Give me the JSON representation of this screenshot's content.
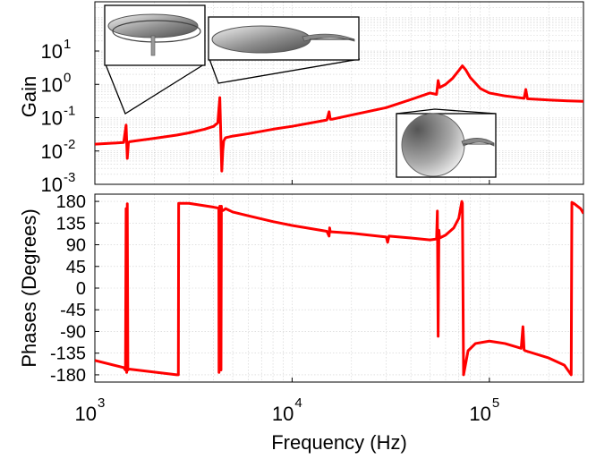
{
  "chart_data": [
    {
      "type": "line",
      "name": "gain-panel",
      "ylabel": "Gain",
      "xscale": "log",
      "yscale": "log",
      "xlim": [
        1000,
        300000
      ],
      "ylim": [
        0.001,
        300
      ],
      "ytick_values": [
        0.001,
        0.01,
        0.1,
        1,
        10
      ],
      "ytick_exps": [
        "-3",
        "-2",
        "-1",
        "0",
        "1"
      ],
      "ytick_base": "10",
      "grid": true,
      "color": "#ff0000",
      "series": [
        {
          "x": [
            1000,
            1200,
            1400,
            1440,
            1460,
            1480,
            1500,
            1600,
            2000,
            2600,
            3000,
            3600,
            4000,
            4200,
            4300,
            4350,
            4400,
            4450,
            4500,
            4600,
            5000,
            6000,
            8000,
            10000,
            15000,
            15400,
            15600,
            16000,
            20000,
            30000,
            40000,
            50000,
            54000,
            55000,
            56000,
            60000,
            65000,
            70000,
            73000,
            76000,
            80000,
            90000,
            100000,
            120000,
            150000,
            153000,
            156000,
            200000,
            250000,
            300000
          ],
          "y": [
            0.016,
            0.017,
            0.018,
            0.06,
            0.006,
            0.018,
            0.019,
            0.02,
            0.024,
            0.03,
            0.035,
            0.045,
            0.055,
            0.07,
            0.4,
            0.03,
            0.0025,
            0.01,
            0.02,
            0.025,
            0.028,
            0.033,
            0.045,
            0.055,
            0.085,
            0.15,
            0.09,
            0.09,
            0.12,
            0.2,
            0.35,
            0.55,
            0.5,
            1.3,
            0.8,
            1.0,
            1.5,
            2.6,
            3.6,
            2.7,
            1.6,
            0.75,
            0.55,
            0.45,
            0.38,
            0.7,
            0.37,
            0.34,
            0.32,
            0.31
          ]
        }
      ]
    },
    {
      "type": "line",
      "name": "phase-panel",
      "ylabel": "Phases (Degrees)",
      "xlabel": "Frequency (Hz)",
      "xscale": "log",
      "xlim": [
        1000,
        300000
      ],
      "ylim": [
        -195,
        195
      ],
      "yticks": [
        180,
        135,
        90,
        45,
        0,
        -45,
        -90,
        -135,
        -180
      ],
      "ytick_labels": [
        "180",
        "135",
        "90",
        "45",
        "0",
        "-45",
        "-90",
        "-135",
        "-180"
      ],
      "xtick_values": [
        1000,
        10000,
        100000
      ],
      "xtick_exps": [
        "3",
        "4",
        "5"
      ],
      "xtick_base": "10",
      "grid": true,
      "color": "#ff0000",
      "series": [
        {
          "x": [
            1000,
            1400,
            1430,
            1440,
            1450,
            1460,
            1470,
            1490,
            2600,
            2650,
            2660,
            3000,
            4000,
            4250,
            4260,
            4280,
            4300,
            4320,
            4340,
            4360,
            4380,
            4400,
            4500,
            4600,
            5000,
            6000,
            8000,
            10000,
            15000,
            15400,
            15500,
            15600,
            20000,
            30000,
            30500,
            31000,
            40000,
            50000,
            54000,
            54500,
            55000,
            55500,
            56000,
            60000,
            66000,
            70000,
            72500,
            73000,
            74000,
            78000,
            85000,
            100000,
            120000,
            145000,
            148000,
            150000,
            152000,
            200000,
            240000,
            260000,
            262000,
            270000,
            290000,
            300000
          ],
          "y": [
            -150,
            -165,
            -170,
            165,
            -175,
            175,
            -170,
            -168,
            -180,
            -180,
            176,
            176,
            168,
            166,
            -175,
            160,
            170,
            -150,
            160,
            -170,
            170,
            160,
            162,
            165,
            158,
            150,
            138,
            130,
            118,
            108,
            125,
            117,
            114,
            106,
            95,
            108,
            104,
            100,
            102,
            160,
            -100,
            120,
            104,
            110,
            125,
            145,
            180,
            176,
            -180,
            -130,
            -115,
            -110,
            -115,
            -125,
            -80,
            -128,
            -130,
            -145,
            -160,
            -180,
            178,
            175,
            165,
            155
          ]
        }
      ]
    }
  ]
}
